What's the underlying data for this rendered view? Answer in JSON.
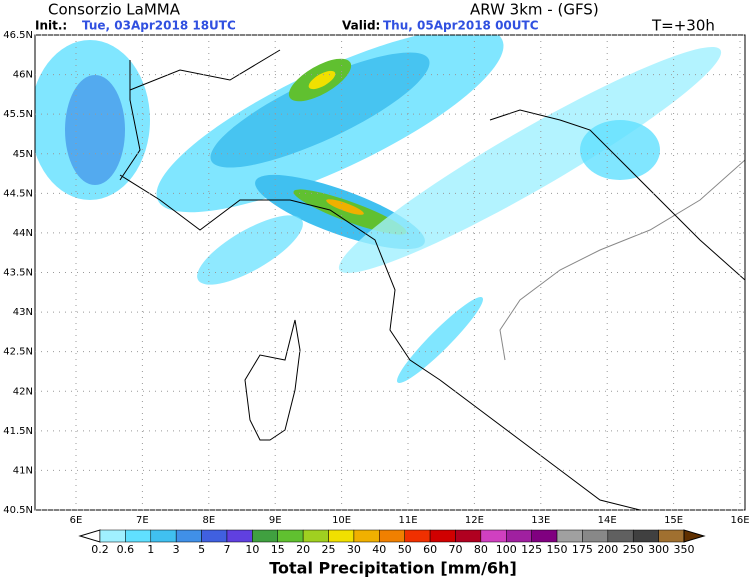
{
  "header": {
    "title": "Consorzio LaMMA",
    "init_label": "Init.:",
    "init_value": "Tue, 03Apr2018 18UTC",
    "model": "ARW 3km - (GFS)",
    "valid_label": "Valid:",
    "valid_value": "Thu, 05Apr2018 00UTC",
    "forecast": "T=+30h"
  },
  "lat_labels": [
    "46.5N",
    "46N",
    "45.5N",
    "45N",
    "44.5N",
    "44N",
    "43.5N",
    "43N",
    "42.5N",
    "42N",
    "41.5N",
    "41N",
    "40.5N"
  ],
  "lon_labels": [
    "6E",
    "7E",
    "8E",
    "9E",
    "10E",
    "11E",
    "12E",
    "13E",
    "14E",
    "15E",
    "16E"
  ],
  "colorbar": {
    "title": "Total Precipitation [mm/6h]",
    "levels": [
      "0.2",
      "0.6",
      "1",
      "3",
      "5",
      "7",
      "10",
      "15",
      "20",
      "25",
      "30",
      "40",
      "50",
      "60",
      "70",
      "80",
      "100",
      "125",
      "150",
      "175",
      "200",
      "250",
      "300",
      "350"
    ],
    "colors": [
      "#ffffff",
      "#a0f0ff",
      "#60e0ff",
      "#40c0f0",
      "#4090e8",
      "#4060e0",
      "#6040e0",
      "#40a040",
      "#60c030",
      "#a0d020",
      "#f0e000",
      "#f0b000",
      "#f08000",
      "#f03000",
      "#d00000",
      "#b00020",
      "#d040c0",
      "#a020a0",
      "#800080",
      "#a0a0a0",
      "#888888",
      "#606060",
      "#404040",
      "#a07030",
      "#805020",
      "#603000"
    ]
  }
}
